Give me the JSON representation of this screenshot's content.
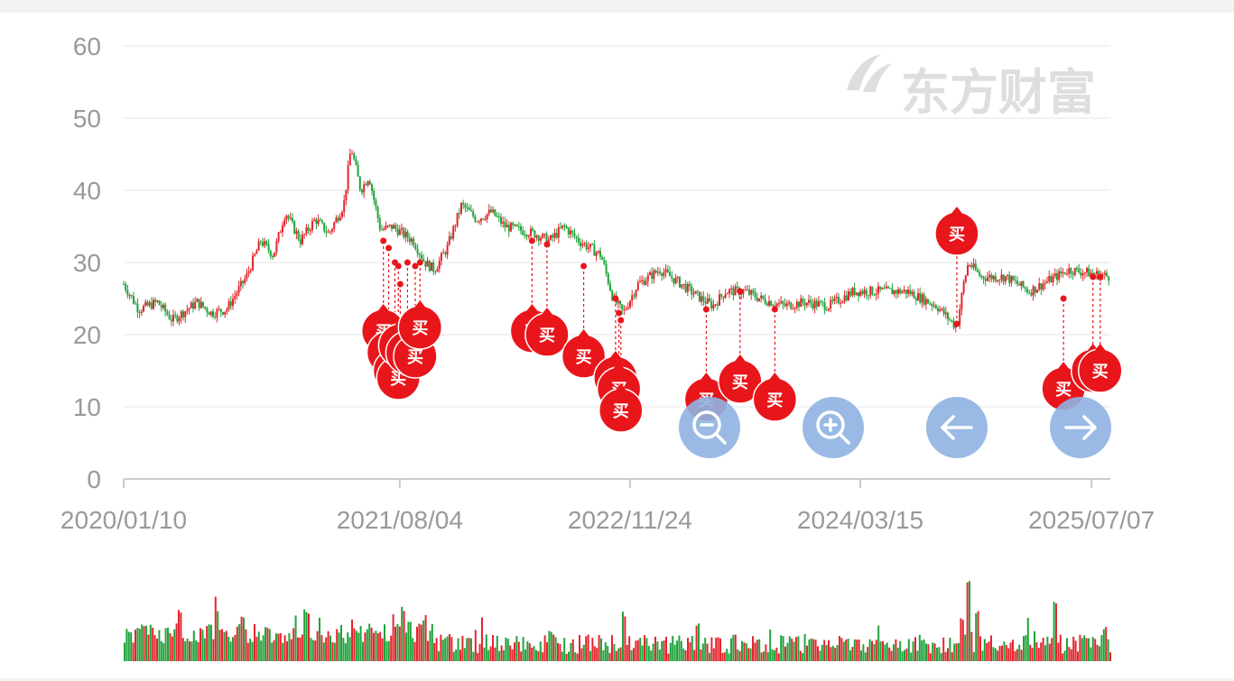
{
  "watermark": {
    "text": "东方财富"
  },
  "controls": {
    "zoom_out": "zoom-out",
    "zoom_in": "zoom-in",
    "prev": "arrow-left",
    "next": "arrow-right"
  },
  "colors": {
    "up": "#e3262e",
    "down": "#21a33b",
    "marker": "#e8161b",
    "control": "#8fb3e2",
    "grid": "#eeeeee"
  },
  "chart_data": {
    "type": "candlestick",
    "x_type": "date",
    "x_range": [
      "2020-01-10",
      "2025-08-15"
    ],
    "ylim": [
      0,
      60
    ],
    "yticks": [
      "0",
      "10",
      "20",
      "30",
      "40",
      "50",
      "60"
    ],
    "xticks": [
      "2020/01/10",
      "2021/08/04",
      "2022/11/24",
      "2024/03/15",
      "2025/07/07"
    ],
    "grid": true,
    "price_path": [
      [
        "2020-01-10",
        27
      ],
      [
        "2020-02-10",
        23.5
      ],
      [
        "2020-03-20",
        24.5
      ],
      [
        "2020-04-20",
        22
      ],
      [
        "2020-06-10",
        24.5
      ],
      [
        "2020-07-10",
        23
      ],
      [
        "2020-08-10",
        23.5
      ],
      [
        "2020-09-20",
        28
      ],
      [
        "2020-10-20",
        33
      ],
      [
        "2020-11-15",
        31
      ],
      [
        "2020-12-10",
        37
      ],
      [
        "2021-01-10",
        33
      ],
      [
        "2021-02-10",
        36
      ],
      [
        "2021-03-10",
        34
      ],
      [
        "2021-04-10",
        38
      ],
      [
        "2021-04-25",
        46
      ],
      [
        "2021-05-15",
        40
      ],
      [
        "2021-06-01",
        42
      ],
      [
        "2021-06-25",
        34.5
      ],
      [
        "2021-07-20",
        35
      ],
      [
        "2021-08-10",
        34
      ],
      [
        "2021-09-01",
        33
      ],
      [
        "2021-09-25",
        30
      ],
      [
        "2021-10-15",
        29
      ],
      [
        "2021-11-10",
        32
      ],
      [
        "2021-12-10",
        38
      ],
      [
        "2022-01-10",
        36
      ],
      [
        "2022-02-10",
        37
      ],
      [
        "2022-03-10",
        35
      ],
      [
        "2022-05-10",
        34
      ],
      [
        "2022-06-10",
        33
      ],
      [
        "2022-07-10",
        35
      ],
      [
        "2022-08-10",
        33
      ],
      [
        "2022-09-25",
        31
      ],
      [
        "2022-10-20",
        25
      ],
      [
        "2022-11-10",
        23
      ],
      [
        "2022-12-10",
        27
      ],
      [
        "2023-01-25",
        29
      ],
      [
        "2023-03-10",
        27
      ],
      [
        "2023-04-20",
        25
      ],
      [
        "2023-05-15",
        24
      ],
      [
        "2023-06-10",
        26
      ],
      [
        "2023-07-20",
        26
      ],
      [
        "2023-08-20",
        25
      ],
      [
        "2023-10-10",
        24
      ],
      [
        "2023-11-20",
        24.5
      ],
      [
        "2024-01-10",
        24
      ],
      [
        "2024-03-01",
        26
      ],
      [
        "2024-05-01",
        26
      ],
      [
        "2024-06-20",
        26
      ],
      [
        "2024-08-20",
        24
      ],
      [
        "2024-10-01",
        21
      ],
      [
        "2024-10-15",
        27
      ],
      [
        "2024-10-25",
        30
      ],
      [
        "2024-11-20",
        28
      ],
      [
        "2025-01-10",
        28
      ],
      [
        "2025-03-01",
        26
      ],
      [
        "2025-05-20",
        29
      ],
      [
        "2025-07-07",
        28.5
      ],
      [
        "2025-08-15",
        28
      ]
    ],
    "buy_markers": [
      {
        "date": "2021-07-01",
        "price": 33,
        "label": "买",
        "bubble_price": 20.5
      },
      {
        "date": "2021-07-12",
        "price": 32,
        "label": "买",
        "bubble_price": 17.5
      },
      {
        "date": "2021-07-25",
        "price": 30,
        "label": "买",
        "bubble_price": 15
      },
      {
        "date": "2021-08-01",
        "price": 29.5,
        "label": "买",
        "bubble_price": 14
      },
      {
        "date": "2021-08-05",
        "price": 27,
        "label": "买",
        "bubble_price": 18.5
      },
      {
        "date": "2021-08-20",
        "price": 30,
        "label": "买",
        "bubble_price": 17.5
      },
      {
        "date": "2021-09-05",
        "price": 29.5,
        "label": "买",
        "bubble_price": 17
      },
      {
        "date": "2021-09-15",
        "price": 30,
        "label": "买",
        "bubble_price": 21
      },
      {
        "date": "2022-05-05",
        "price": 33,
        "label": "买",
        "bubble_price": 20.5
      },
      {
        "date": "2022-06-05",
        "price": 32.5,
        "label": "买",
        "bubble_price": 20
      },
      {
        "date": "2022-08-20",
        "price": 29.5,
        "label": "买",
        "bubble_price": 17
      },
      {
        "date": "2022-10-25",
        "price": 25,
        "label": "买",
        "bubble_price": 14
      },
      {
        "date": "2022-11-01",
        "price": 23,
        "label": "买",
        "bubble_price": 12.5
      },
      {
        "date": "2022-11-05",
        "price": 22,
        "label": "买",
        "bubble_price": 9.5
      },
      {
        "date": "2023-05-01",
        "price": 23.5,
        "label": "买",
        "bubble_price": 11
      },
      {
        "date": "2023-07-10",
        "price": 26,
        "label": "买",
        "bubble_price": 13.5
      },
      {
        "date": "2023-09-20",
        "price": 23.5,
        "label": "买",
        "bubble_price": 11
      },
      {
        "date": "2024-10-01",
        "price": 21.5,
        "label": "买",
        "bubble_price": 34
      },
      {
        "date": "2025-05-10",
        "price": 25,
        "label": "买",
        "bubble_price": 12.5
      },
      {
        "date": "2025-07-10",
        "price": 28,
        "label": "买",
        "bubble_price": 15
      },
      {
        "date": "2025-07-25",
        "price": 28,
        "label": "买",
        "bubble_price": 15
      }
    ],
    "volume_spikes": [
      [
        "2020-01-20",
        0.35
      ],
      [
        "2020-05-05",
        0.6
      ],
      [
        "2020-07-20",
        0.65
      ],
      [
        "2020-09-10",
        0.55
      ],
      [
        "2021-01-20",
        0.6
      ],
      [
        "2021-04-25",
        0.5
      ],
      [
        "2021-08-10",
        0.65
      ],
      [
        "2022-01-20",
        0.5
      ],
      [
        "2022-06-10",
        0.35
      ],
      [
        "2022-11-10",
        0.55
      ],
      [
        "2023-04-10",
        0.45
      ],
      [
        "2023-10-01",
        0.3
      ],
      [
        "2024-10-10",
        0.5
      ],
      [
        "2024-10-22",
        1.0
      ],
      [
        "2024-11-10",
        0.6
      ],
      [
        "2025-04-20",
        0.7
      ],
      [
        "2025-08-01",
        0.4
      ]
    ]
  }
}
